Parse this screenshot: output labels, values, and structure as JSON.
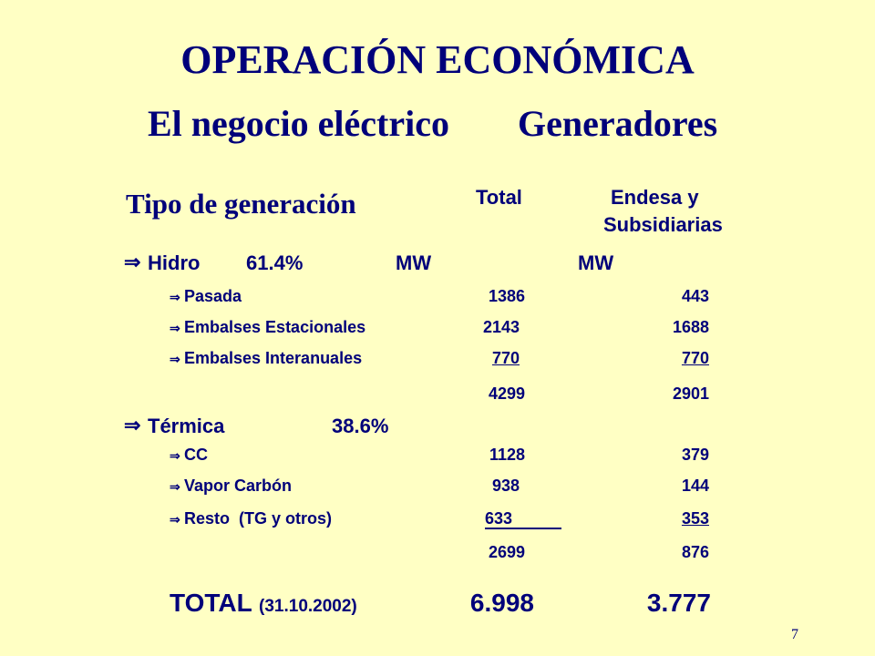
{
  "title": "OPERACIÓN ECONÓMICA",
  "subtitle_left": "El negocio eléctrico",
  "subtitle_right": "Generadores",
  "section_heading": "Tipo de generación",
  "columns": {
    "total": "Total",
    "endesa_line1": "Endesa y",
    "endesa_line2": "Subsidiarias"
  },
  "hidro": {
    "label": "Hidro",
    "percent": "61.4%",
    "unit_total": "MW",
    "unit_endesa": "MW",
    "rows": [
      {
        "label": "Pasada",
        "total": "1386",
        "endesa": "443"
      },
      {
        "label": "Embalses Estacionales",
        "total": "2143",
        "endesa": "1688"
      },
      {
        "label": "Embalses Interanuales",
        "total": "770",
        "endesa": "770"
      }
    ],
    "subtotal_total": "4299",
    "subtotal_endesa": "2901"
  },
  "termica": {
    "label": "Térmica",
    "percent": "38.6%",
    "rows": [
      {
        "label": "CC",
        "total": "1128",
        "endesa": "379"
      },
      {
        "label": "Vapor Carbón",
        "total": "938",
        "endesa": "144"
      },
      {
        "label": "Resto  (TG y otros)",
        "total": "633",
        "endesa": "353"
      }
    ],
    "subtotal_total": "2699",
    "subtotal_endesa": "876"
  },
  "total": {
    "label": "TOTAL",
    "date": "(31.10.2002)",
    "total": "6.998",
    "endesa": "3.777"
  },
  "page_number": "7",
  "icons": {
    "arrow": "⇒"
  },
  "colors": {
    "background": "#FFFFC4",
    "text": "#00007A"
  }
}
